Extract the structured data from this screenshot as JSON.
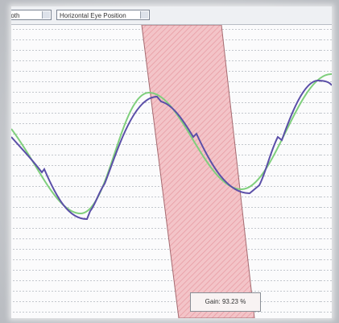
{
  "toolbar": {
    "mode_select": "Both",
    "channel_select": "Horizontal Eye Position"
  },
  "gain_label": "Gain: 93.23 %"
}
